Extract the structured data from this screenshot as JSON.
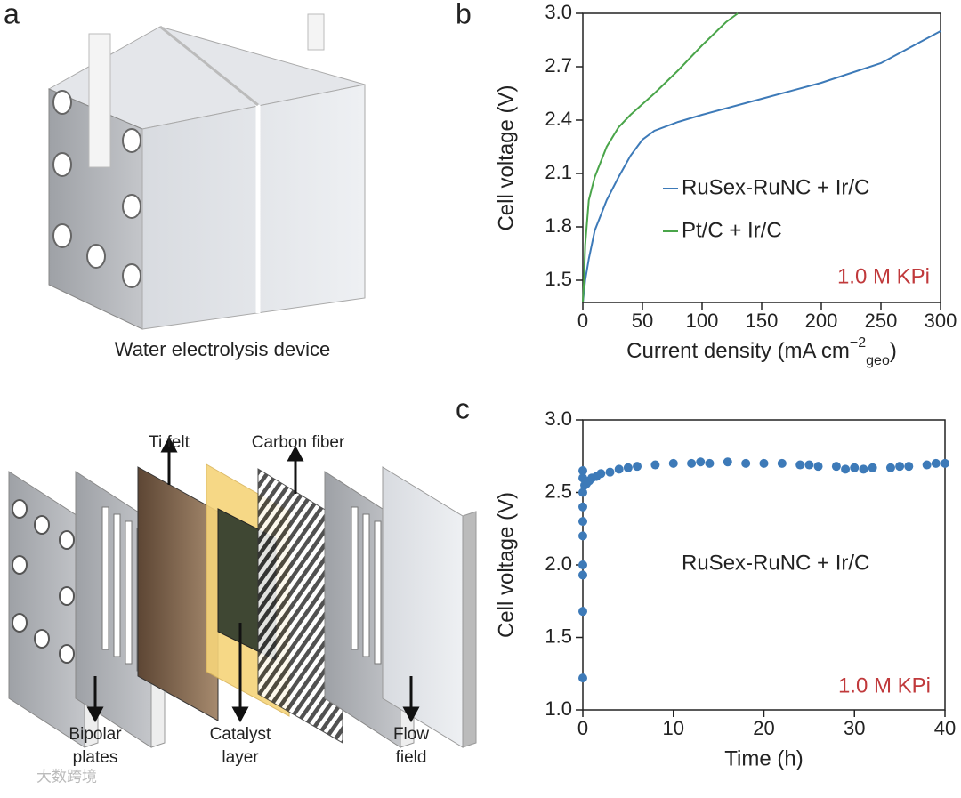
{
  "panels": [
    "a",
    "b",
    "c"
  ],
  "device": {
    "caption": "Water electrolysis device"
  },
  "stack": {
    "ti_felt": "Ti felt",
    "carbon_fiber": "Carbon fiber",
    "bipolar": [
      "Bipolar",
      "plates"
    ],
    "catalyst": [
      "Catalyst",
      "layer"
    ],
    "flow": [
      "Flow",
      "field"
    ]
  },
  "watermark": "大数跨境",
  "chart_data": [
    {
      "type": "line",
      "ylabel": "Cell voltage (V)",
      "xlabel": [
        "Current density  (mA cm",
        "−2",
        "geo",
        ")"
      ],
      "xlim": [
        0,
        300
      ],
      "ylim": [
        1.375,
        3.0
      ],
      "xticks": [
        0,
        50,
        100,
        150,
        200,
        250,
        300
      ],
      "yticks": [
        1.5,
        1.8,
        2.1,
        2.4,
        2.7,
        {
          "value": 3,
          "label": "3.0"
        }
      ],
      "legend": "center right",
      "annotation": "1.0 M KPi",
      "series": [
        {
          "name": "RuSex-RuNC + Ir/C",
          "color": "#3d7ab8",
          "x": [
            0,
            2,
            5,
            10,
            20,
            30,
            40,
            50,
            60,
            80,
            100,
            150,
            200,
            250,
            300
          ],
          "values": [
            1.375,
            1.5,
            1.62,
            1.78,
            1.95,
            2.08,
            2.2,
            2.29,
            2.34,
            2.39,
            2.43,
            2.52,
            2.61,
            2.72,
            2.9
          ]
        },
        {
          "name": "Pt/C + Ir/C",
          "color": "#4aa54a",
          "x": [
            0,
            1,
            2,
            5,
            10,
            20,
            30,
            40,
            60,
            80,
            100,
            120,
            130
          ],
          "values": [
            1.375,
            1.5,
            1.7,
            1.95,
            2.08,
            2.25,
            2.36,
            2.43,
            2.55,
            2.68,
            2.82,
            2.95,
            3.0
          ]
        }
      ]
    },
    {
      "type": "scatter",
      "ylabel": "Cell voltage (V)",
      "xlabel": "Time (h)",
      "xlim": [
        0,
        40
      ],
      "ylim": [
        1.0,
        3.0
      ],
      "xticks": [
        0,
        10,
        20,
        30,
        40
      ],
      "yticks": [
        {
          "value": 1,
          "label": "1.0"
        },
        1.5,
        {
          "value": 2,
          "label": "2.0"
        },
        2.5,
        {
          "value": 3,
          "label": "3.0"
        }
      ],
      "annotation": "RuSex-RuNC + Ir/C",
      "annotation2": "1.0 M KPi",
      "series": [
        {
          "name": "RuSex-RuNC + Ir/C",
          "color": "#3d7ab8",
          "x": [
            0,
            0,
            0,
            0,
            0,
            0,
            0,
            0,
            0,
            0,
            0.2,
            0.4,
            0.7,
            1,
            1.5,
            2,
            3,
            4,
            5,
            6,
            8,
            10,
            12,
            13,
            14,
            16,
            18,
            20,
            22,
            24,
            25,
            26,
            28,
            29,
            30,
            31,
            32,
            34,
            35,
            36,
            38,
            39,
            40
          ],
          "values": [
            1.22,
            1.68,
            1.93,
            2.0,
            2.2,
            2.3,
            2.4,
            2.5,
            2.6,
            2.65,
            2.55,
            2.56,
            2.58,
            2.6,
            2.61,
            2.63,
            2.64,
            2.66,
            2.67,
            2.68,
            2.69,
            2.7,
            2.7,
            2.71,
            2.7,
            2.71,
            2.7,
            2.7,
            2.7,
            2.69,
            2.69,
            2.68,
            2.68,
            2.66,
            2.67,
            2.66,
            2.67,
            2.67,
            2.68,
            2.68,
            2.69,
            2.7,
            2.7
          ]
        }
      ]
    }
  ]
}
